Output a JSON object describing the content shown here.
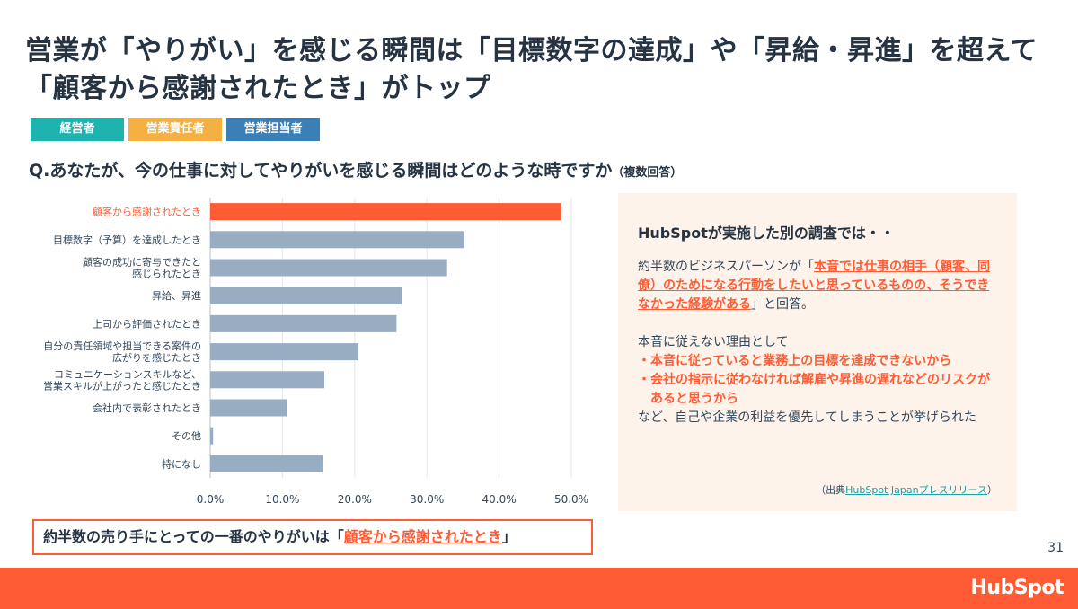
{
  "title": "営業が「やりがい」を感じる瞬間は「目標数字の達成」や「昇給・昇進」を超えて「顧客から感謝されたとき」がトップ",
  "legend": [
    {
      "label": "経営者",
      "color": "#1fb3b0"
    },
    {
      "label": "営業責任者",
      "color": "#f5b042"
    },
    {
      "label": "営業担当者",
      "color": "#3a7fb6"
    }
  ],
  "question": "Q.あなたが、今の仕事に対してやりがいを感じる瞬間はどのような時ですか",
  "question_note": "（複数回答）",
  "chart_data": {
    "type": "bar",
    "orientation": "horizontal",
    "categories": [
      "顧客から感謝されたとき",
      "目標数字（予算）を達成したとき",
      "顧客の成功に寄与できたと感じられたとき",
      "昇給、昇進",
      "上司から評価されたとき",
      "自分の責任領域や担当できる案件の広がりを感じたとき",
      "コミュニケーションスキルなど、営業スキルが上がったと感じたとき",
      "会社内で表彰されたとき",
      "その他",
      "特になし"
    ],
    "category_lines": [
      [
        "顧客から感謝されたとき"
      ],
      [
        "目標数字（予算）を達成したとき"
      ],
      [
        "顧客の成功に寄与できたと",
        "感じられたとき"
      ],
      [
        "昇給、昇進"
      ],
      [
        "上司から評価されたとき"
      ],
      [
        "自分の責任領域や担当できる案件の",
        "広がりを感じたとき"
      ],
      [
        "コミュニケーションスキルなど、",
        "営業スキルが上がったと感じたとき"
      ],
      [
        "会社内で表彰されたとき"
      ],
      [
        "その他"
      ],
      [
        "特になし"
      ]
    ],
    "values": [
      48.6,
      35.2,
      32.8,
      26.5,
      25.8,
      20.5,
      15.8,
      10.6,
      0.4,
      15.6
    ],
    "highlight_index": 0,
    "highlight_color": "#ff5c35",
    "bar_color": "#98adc1",
    "xlim": [
      0,
      50
    ],
    "xticks": [
      "0.0%",
      "10.0%",
      "20.0%",
      "30.0%",
      "40.0%",
      "50.0%"
    ],
    "grid": true,
    "xlabel": "",
    "ylabel": ""
  },
  "panel": {
    "title": "HubSpotが実施した別の調査では・・",
    "p1_pre": "約半数のビジネスパーソンが「",
    "p1_hl": "本音では仕事の相手（顧客、同僚）のためになる行動をしたいと思っているものの、そうできなかった経験がある",
    "p1_post": "」と回答。",
    "reason_intro": "本音に従えない理由として",
    "reason1": "・本音に従っていると業務上の目標を達成できないから",
    "reason2": "・会社の指示に従わなければ解雇や昇進の遅れなどのリスクがあると思うから",
    "closing": "など、自己や企業の利益を優先してしまうことが挙げられた",
    "source_pre": "（出典",
    "source_link": "HubSpot Japanプレスリリース",
    "source_post": "）"
  },
  "conclusion": {
    "pre": "約半数の売り手にとっての一番のやりがいは「",
    "hl": "顧客から感謝されたとき",
    "post": "」"
  },
  "page_number": "31",
  "logo": "HubSpot",
  "colors": {
    "accent": "#ff5c35",
    "navy": "#253342",
    "panel_bg": "#fdf3eb"
  }
}
